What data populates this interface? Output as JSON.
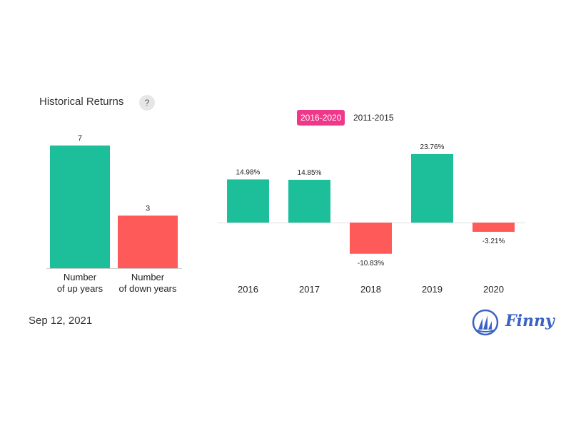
{
  "header": {
    "title": "Historical Returns",
    "help_label": "?"
  },
  "tabs": [
    {
      "label": "2016-2020",
      "active": true
    },
    {
      "label": "2011-2015",
      "active": false
    }
  ],
  "footer": {
    "date": "Sep 12, 2021",
    "brand": "Finny"
  },
  "colors": {
    "positive": "#1dbf9b",
    "negative": "#ff5a5a",
    "accent": "#f0388a",
    "brand": "#3a62c4"
  },
  "chart_data": [
    {
      "type": "bar",
      "categories": [
        "Number\nof up years",
        "Number\nof down years"
      ],
      "values": [
        7,
        3
      ],
      "colors": [
        "positive",
        "negative"
      ],
      "ylim": [
        0,
        7
      ]
    },
    {
      "type": "bar",
      "categories": [
        "2016",
        "2017",
        "2018",
        "2019",
        "2020"
      ],
      "values": [
        14.98,
        14.85,
        -10.83,
        23.76,
        -3.21
      ],
      "value_labels": [
        "14.98%",
        "14.85%",
        "-10.83%",
        "23.76%",
        "-3.21%"
      ],
      "unit": "%"
    }
  ]
}
